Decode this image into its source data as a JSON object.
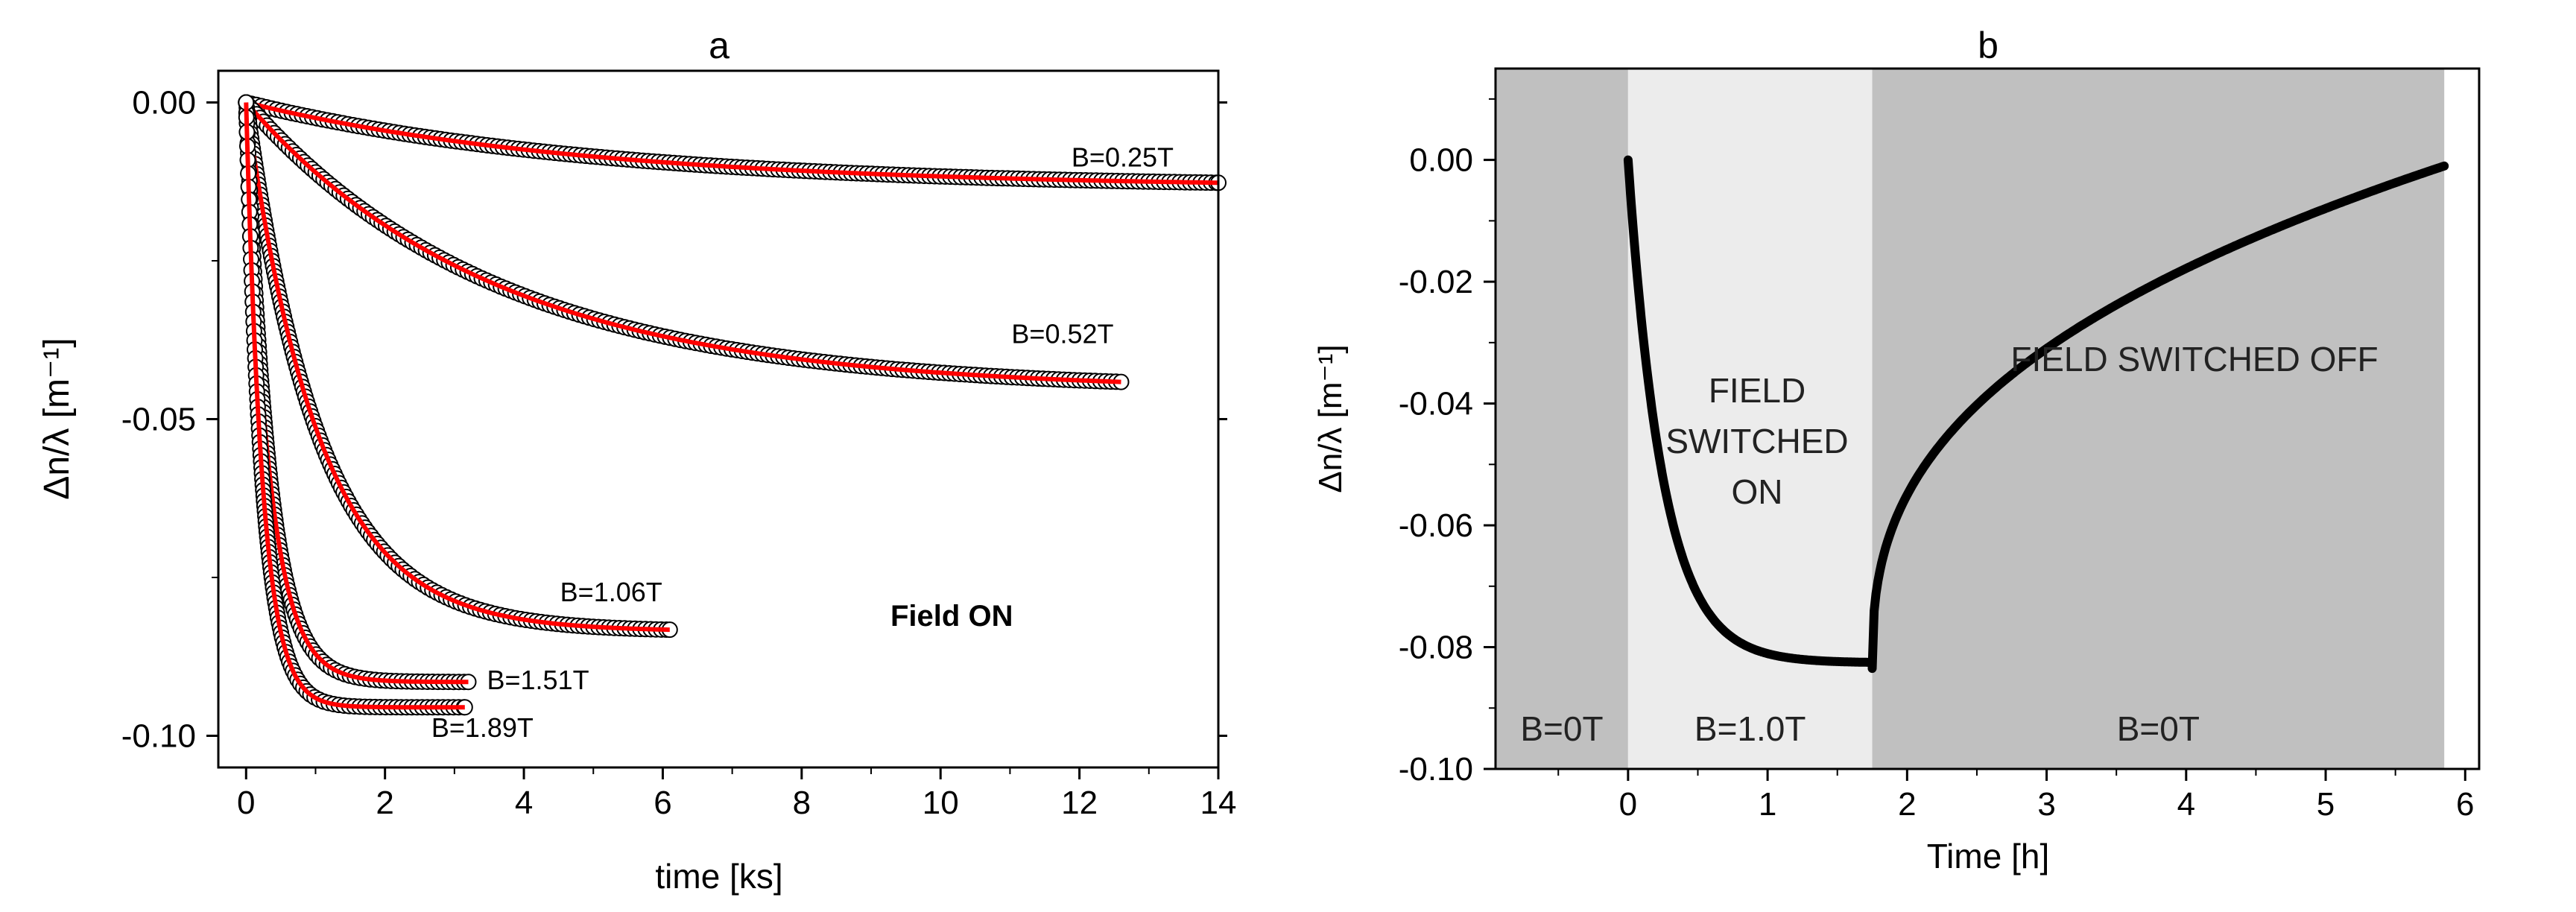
{
  "chart_data": [
    {
      "type": "scatter",
      "panel_label": "a",
      "xlabel": "time [ks]",
      "ylabel": "Δn/λ [m⁻¹]",
      "xlim": [
        -0.4,
        14
      ],
      "ylim": [
        -0.105,
        0.005
      ],
      "xticks": [
        0,
        2,
        4,
        6,
        8,
        10,
        12,
        14
      ],
      "yticks": [
        0.0,
        -0.05,
        -0.1
      ],
      "ytick_labels": [
        "0.00",
        "-0.05",
        "-0.10"
      ],
      "annotation": "Field ON",
      "marker_color": "#000000",
      "fit_color": "#ff0000",
      "series": [
        {
          "name": "B=0.25T",
          "amplitude": -0.0135,
          "tau": 5.0,
          "t_end": 14.0
        },
        {
          "name": "B=0.52T",
          "amplitude": -0.0455,
          "tau": 3.6,
          "t_end": 12.6
        },
        {
          "name": "B=1.06T",
          "amplitude": -0.0835,
          "tau": 1.05,
          "t_end": 6.1
        },
        {
          "name": "B=1.51T",
          "amplitude": -0.0915,
          "tau": 0.33,
          "t_end": 3.2
        },
        {
          "name": "B=1.89T",
          "amplitude": -0.0955,
          "tau": 0.24,
          "t_end": 3.15
        }
      ]
    },
    {
      "type": "line",
      "panel_label": "b",
      "xlabel": "Time [h]",
      "ylabel": "Δn/λ [m⁻¹]",
      "xlim": [
        -0.95,
        6.1
      ],
      "ylim": [
        -0.1,
        0.015
      ],
      "xticks": [
        0,
        1,
        2,
        3,
        4,
        5,
        6
      ],
      "yticks": [
        0.0,
        -0.02,
        -0.04,
        -0.06,
        -0.08,
        -0.1
      ],
      "ytick_labels": [
        "0.00",
        "-0.02",
        "-0.04",
        "-0.06",
        "-0.08",
        "-0.10"
      ],
      "line_color": "#000000",
      "regions": [
        {
          "x0": -0.95,
          "x1": 0.0,
          "color": "#c0c0c0",
          "label": "B=0T"
        },
        {
          "x0": 0.0,
          "x1": 1.75,
          "color": "#ececec",
          "label": "B=1.0T"
        },
        {
          "x0": 1.75,
          "x1": 5.85,
          "color": "#c0c0c0",
          "label": "B=0T"
        }
      ],
      "region_notes": {
        "on_lines": [
          "FIELD",
          "SWITCHED",
          "ON"
        ],
        "off": "FIELD SWITCHED OFF"
      },
      "switch_on": {
        "t0": 0.0,
        "y0": 0.0,
        "t1": 1.75,
        "y1": -0.0825,
        "tau": 0.25
      },
      "switch_off": {
        "t0": 1.75,
        "y0": -0.0835,
        "t1": 5.85,
        "y1": -0.001
      }
    }
  ]
}
